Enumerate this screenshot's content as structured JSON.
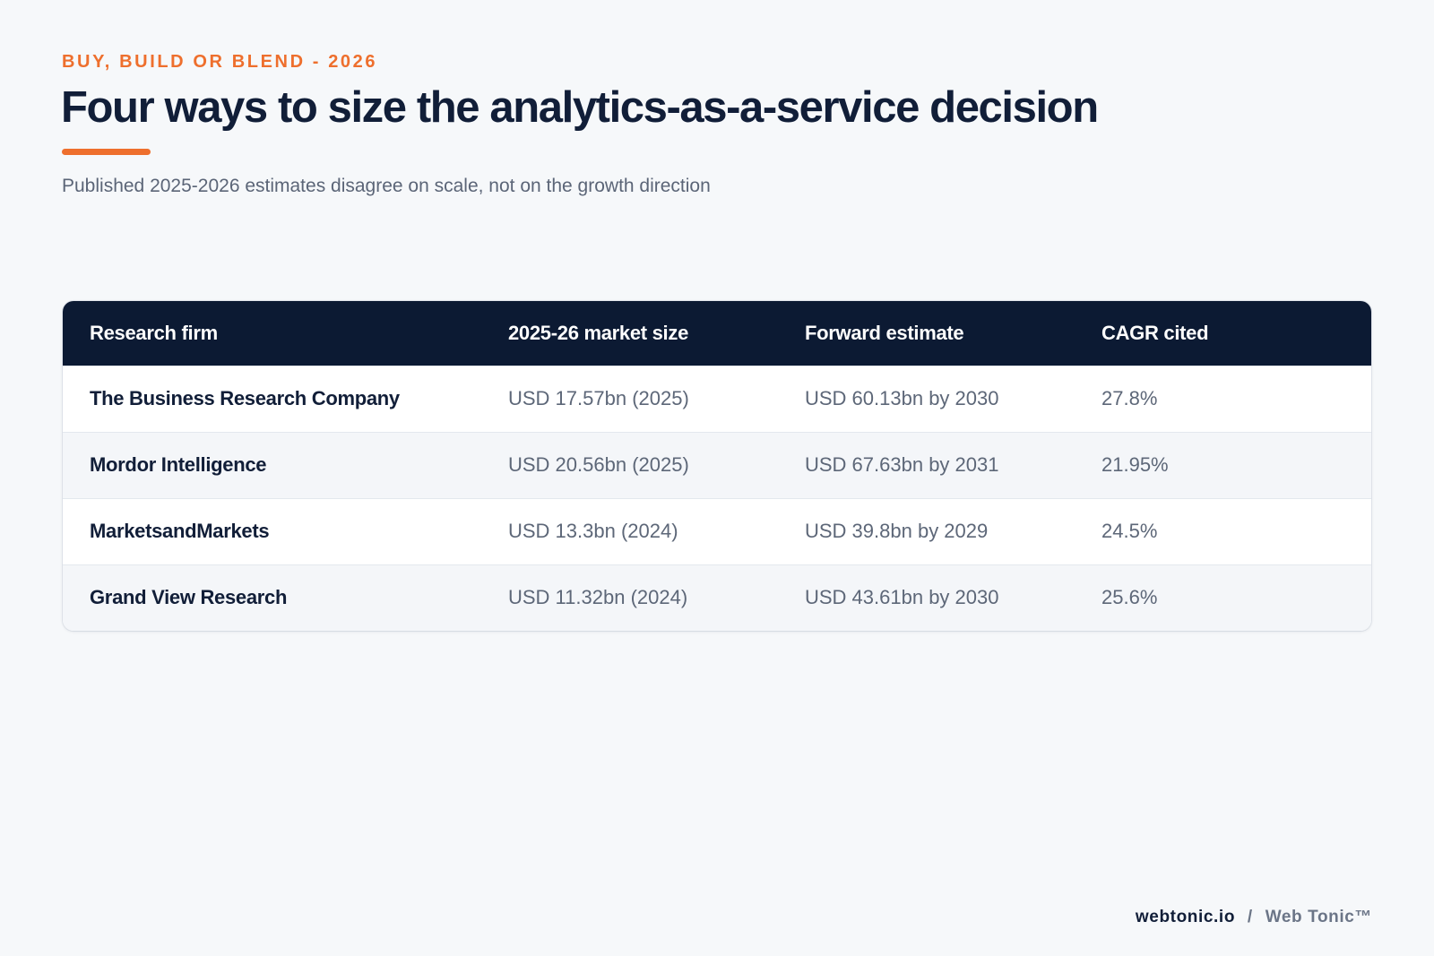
{
  "header": {
    "eyebrow": "BUY, BUILD OR BLEND - 2026",
    "title": "Four ways to size the analytics-as-a-service decision",
    "subtitle": "Published 2025-2026 estimates disagree on scale, not on the growth direction"
  },
  "table": {
    "columns": [
      "Research firm",
      "2025-26 market size",
      "Forward estimate",
      "CAGR cited"
    ],
    "rows": [
      [
        "The Business Research Company",
        "USD 17.57bn (2025)",
        "USD 60.13bn by 2030",
        "27.8%"
      ],
      [
        "Mordor Intelligence",
        "USD 20.56bn (2025)",
        "USD 67.63bn by 2031",
        "21.95%"
      ],
      [
        "MarketsandMarkets",
        "USD 13.3bn (2024)",
        "USD 39.8bn by 2029",
        "24.5%"
      ],
      [
        "Grand View Research",
        "USD 11.32bn (2024)",
        "USD 43.61bn by 2030",
        "25.6%"
      ]
    ]
  },
  "footer": {
    "domain": "webtonic.io",
    "separator": "/",
    "brand": "Web Tonic™"
  },
  "colors": {
    "accent": "#ee6f2d",
    "header_bg": "#0c1a33",
    "page_bg": "#f6f8fa"
  }
}
